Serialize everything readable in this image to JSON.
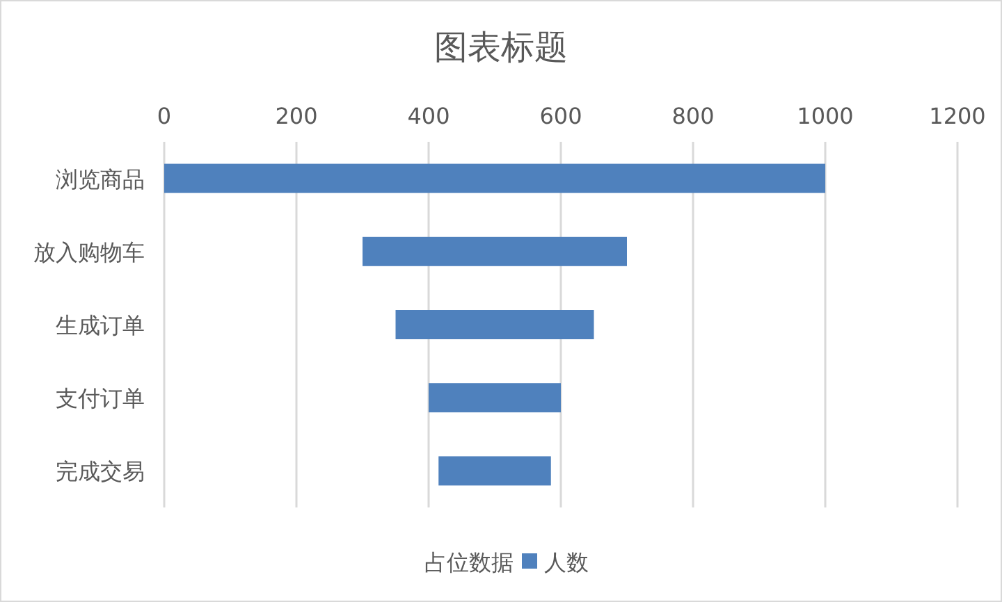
{
  "chart_data": {
    "type": "bar",
    "orientation": "horizontal",
    "title": "图表标题",
    "categories": [
      "浏览商品",
      "放入购物车",
      "生成订单",
      "支付订单",
      "完成交易"
    ],
    "series": [
      {
        "name": "人数",
        "color": "#4f81bd",
        "values": [
          1000,
          400,
          300,
          200,
          170
        ],
        "base": [
          0,
          300,
          350,
          400,
          415
        ]
      }
    ],
    "xlim": [
      0,
      1200
    ],
    "xticks": [
      0,
      200,
      400,
      600,
      800,
      1000,
      1200
    ],
    "grid": "x",
    "legend": "bottom",
    "annotations": [
      "占位数据"
    ]
  }
}
